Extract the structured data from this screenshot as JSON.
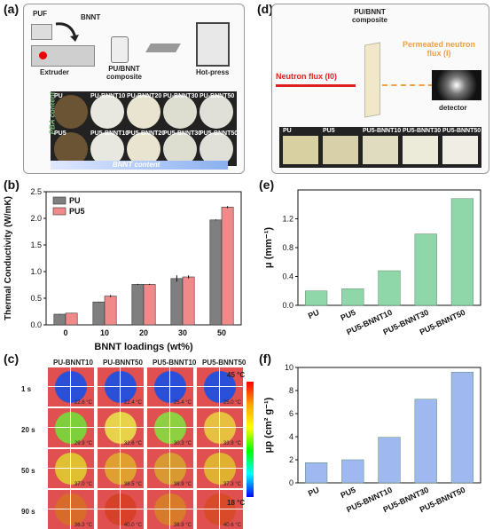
{
  "panel_labels": {
    "a": "(a)",
    "b": "(b)",
    "c": "(c)",
    "d": "(d)",
    "e": "(e)",
    "f": "(f)"
  },
  "panel_a": {
    "puf": "PUF",
    "bnnt": "BNNT",
    "extruder": "Extruder",
    "composite": "PU/BNNT composite",
    "hotpress": "Hot-press",
    "row1": [
      "PU",
      "PU-BNNT10",
      "PU-BNNT20",
      "PU-BNNT30",
      "PU-BNNT50"
    ],
    "row2": [
      "PU5",
      "PU5-BNNT10",
      "PU5-BNNT20",
      "PU5-BNNT30",
      "PU5-BNNT50"
    ],
    "pba_axis": "PBA content",
    "bnnt_axis": "BNNT content"
  },
  "panel_d": {
    "composite": "PU/BNNT composite",
    "neutron": "Neutron flux (I0)",
    "permeated": "Permeated neutron flux (I)",
    "detector": "detector",
    "samples": [
      "PU",
      "PU5",
      "PU5-BNNT10",
      "PU5-BNNT30",
      "PU5-BNNT50"
    ]
  },
  "panel_c": {
    "cols": [
      "PU-BNNT10",
      "PU-BNNT50",
      "PU5-BNNT10",
      "PU5-BNNT50"
    ],
    "rows": [
      "1 s",
      "20 s",
      "50 s",
      "90 s"
    ],
    "temps": [
      [
        "22.6 °C",
        "22.4 °C",
        "25.4 °C",
        "25.0 °C"
      ],
      [
        "29.9 °C",
        "32.6 °C",
        "30.3 °C",
        "33.9 °C"
      ],
      [
        "37.0 °C",
        "38.5 °C",
        "38.9 °C",
        "37.3 °C"
      ],
      [
        "36.3 °C",
        "40.0 °C",
        "38.9 °C",
        "40.6 °C"
      ]
    ],
    "scale_max": "45 °C",
    "scale_min": "18 °C",
    "disk_colors": [
      [
        "#2a4fd8",
        "#2a4fd8",
        "#2a4fd8",
        "#2a4fd8"
      ],
      [
        "#7fcf3a",
        "#e8d24a",
        "#8fd040",
        "#e8c040"
      ],
      [
        "#e0c030",
        "#e0a030",
        "#d89a30",
        "#e0b030"
      ],
      [
        "#d86a2a",
        "#d8402a",
        "#d87a2a",
        "#d84a2a"
      ]
    ],
    "accent_bg": "#e05050"
  },
  "chart_data": [
    {
      "type": "bar",
      "ylabel": "Thermal Conductivity (W/mK)",
      "xlabel": "BNNT loadings (wt%)",
      "categories": [
        "0",
        "10",
        "20",
        "30",
        "50"
      ],
      "series": [
        {
          "name": "PU",
          "values": [
            0.2,
            0.43,
            0.76,
            0.87,
            1.97
          ],
          "errors": [
            0.005,
            0.005,
            0.01,
            0.06,
            0.01
          ],
          "color": "#7f7f7f"
        },
        {
          "name": "PU5",
          "values": [
            0.22,
            0.54,
            0.76,
            0.9,
            2.21
          ],
          "errors": [
            0.005,
            0.02,
            0.01,
            0.03,
            0.02
          ],
          "color": "#f08a8a"
        }
      ],
      "ylim": [
        0,
        2.5
      ],
      "yticks": [
        0.0,
        0.5,
        1.0,
        1.5,
        2.0,
        2.5
      ],
      "legend": "top-left"
    },
    {
      "type": "bar",
      "ylabel": "μ (mm⁻¹)",
      "categories": [
        "PU",
        "PU5",
        "PU5-BNNT10",
        "PU5-BNNT30",
        "PU5-BNNT50"
      ],
      "values": [
        0.2,
        0.23,
        0.48,
        0.99,
        1.48
      ],
      "ylim": [
        0,
        1.6
      ],
      "yticks": [
        0.0,
        0.4,
        0.8,
        1.2
      ],
      "color": "#8fd6a8"
    },
    {
      "type": "bar",
      "ylabel": "μp (cm² g⁻¹)",
      "categories": [
        "PU",
        "PU5",
        "PU5-BNNT10",
        "PU5-BNNT30",
        "PU5-BNNT50"
      ],
      "values": [
        1.75,
        2.0,
        3.95,
        7.25,
        9.6
      ],
      "ylim": [
        0,
        10
      ],
      "yticks": [
        0,
        2,
        4,
        6,
        8,
        10
      ],
      "color": "#9fb8f0"
    }
  ]
}
